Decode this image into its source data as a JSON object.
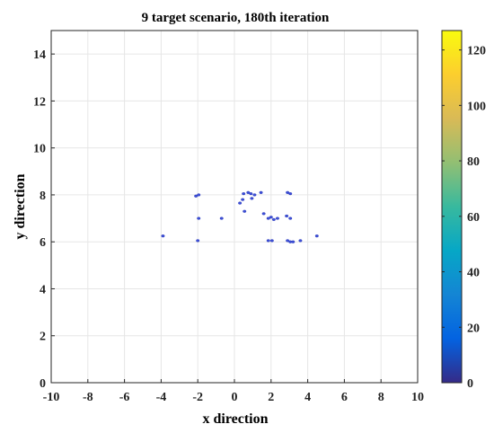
{
  "chart_data": {
    "type": "scatter",
    "title": "9 target scenario, 180th iteration",
    "xlabel": "x direction",
    "ylabel": "y direction",
    "xlim": [
      -10,
      10
    ],
    "ylim": [
      0,
      15
    ],
    "xticks": [
      "-10",
      "-8",
      "-6",
      "-4",
      "-2",
      "0",
      "2",
      "4",
      "6",
      "8",
      "10"
    ],
    "yticks": [
      "0",
      "2",
      "4",
      "6",
      "8",
      "10",
      "12",
      "14"
    ],
    "grid": true,
    "colorbar": {
      "range": [
        0,
        127
      ],
      "ticks": [
        "0",
        "20",
        "40",
        "60",
        "80",
        "100",
        "120"
      ],
      "colormap": "parula"
    },
    "points": [
      {
        "x": -3.9,
        "y": 6.25,
        "c": 10
      },
      {
        "x": -2.1,
        "y": 7.95,
        "c": 10
      },
      {
        "x": -1.95,
        "y": 8.0,
        "c": 10
      },
      {
        "x": -1.95,
        "y": 7.0,
        "c": 10
      },
      {
        "x": -2.0,
        "y": 6.05,
        "c": 10
      },
      {
        "x": -0.7,
        "y": 7.0,
        "c": 10
      },
      {
        "x": 0.3,
        "y": 7.65,
        "c": 10
      },
      {
        "x": 0.45,
        "y": 7.8,
        "c": 10
      },
      {
        "x": 0.5,
        "y": 8.05,
        "c": 10
      },
      {
        "x": 0.55,
        "y": 7.3,
        "c": 10
      },
      {
        "x": 0.75,
        "y": 8.1,
        "c": 10
      },
      {
        "x": 0.9,
        "y": 8.05,
        "c": 10
      },
      {
        "x": 0.95,
        "y": 7.85,
        "c": 10
      },
      {
        "x": 1.1,
        "y": 8.0,
        "c": 10
      },
      {
        "x": 1.45,
        "y": 8.1,
        "c": 10
      },
      {
        "x": 1.6,
        "y": 7.2,
        "c": 10
      },
      {
        "x": 1.85,
        "y": 7.0,
        "c": 10
      },
      {
        "x": 2.0,
        "y": 7.05,
        "c": 10
      },
      {
        "x": 2.15,
        "y": 6.95,
        "c": 10
      },
      {
        "x": 2.35,
        "y": 7.0,
        "c": 10
      },
      {
        "x": 1.85,
        "y": 6.05,
        "c": 10
      },
      {
        "x": 2.05,
        "y": 6.05,
        "c": 10
      },
      {
        "x": 2.85,
        "y": 7.1,
        "c": 10
      },
      {
        "x": 3.05,
        "y": 7.0,
        "c": 10
      },
      {
        "x": 2.9,
        "y": 8.1,
        "c": 10
      },
      {
        "x": 3.05,
        "y": 8.05,
        "c": 10
      },
      {
        "x": 2.9,
        "y": 6.05,
        "c": 10
      },
      {
        "x": 3.05,
        "y": 6.0,
        "c": 10
      },
      {
        "x": 3.2,
        "y": 6.0,
        "c": 10
      },
      {
        "x": 3.6,
        "y": 6.05,
        "c": 10
      },
      {
        "x": 4.5,
        "y": 6.25,
        "c": 10
      }
    ]
  }
}
